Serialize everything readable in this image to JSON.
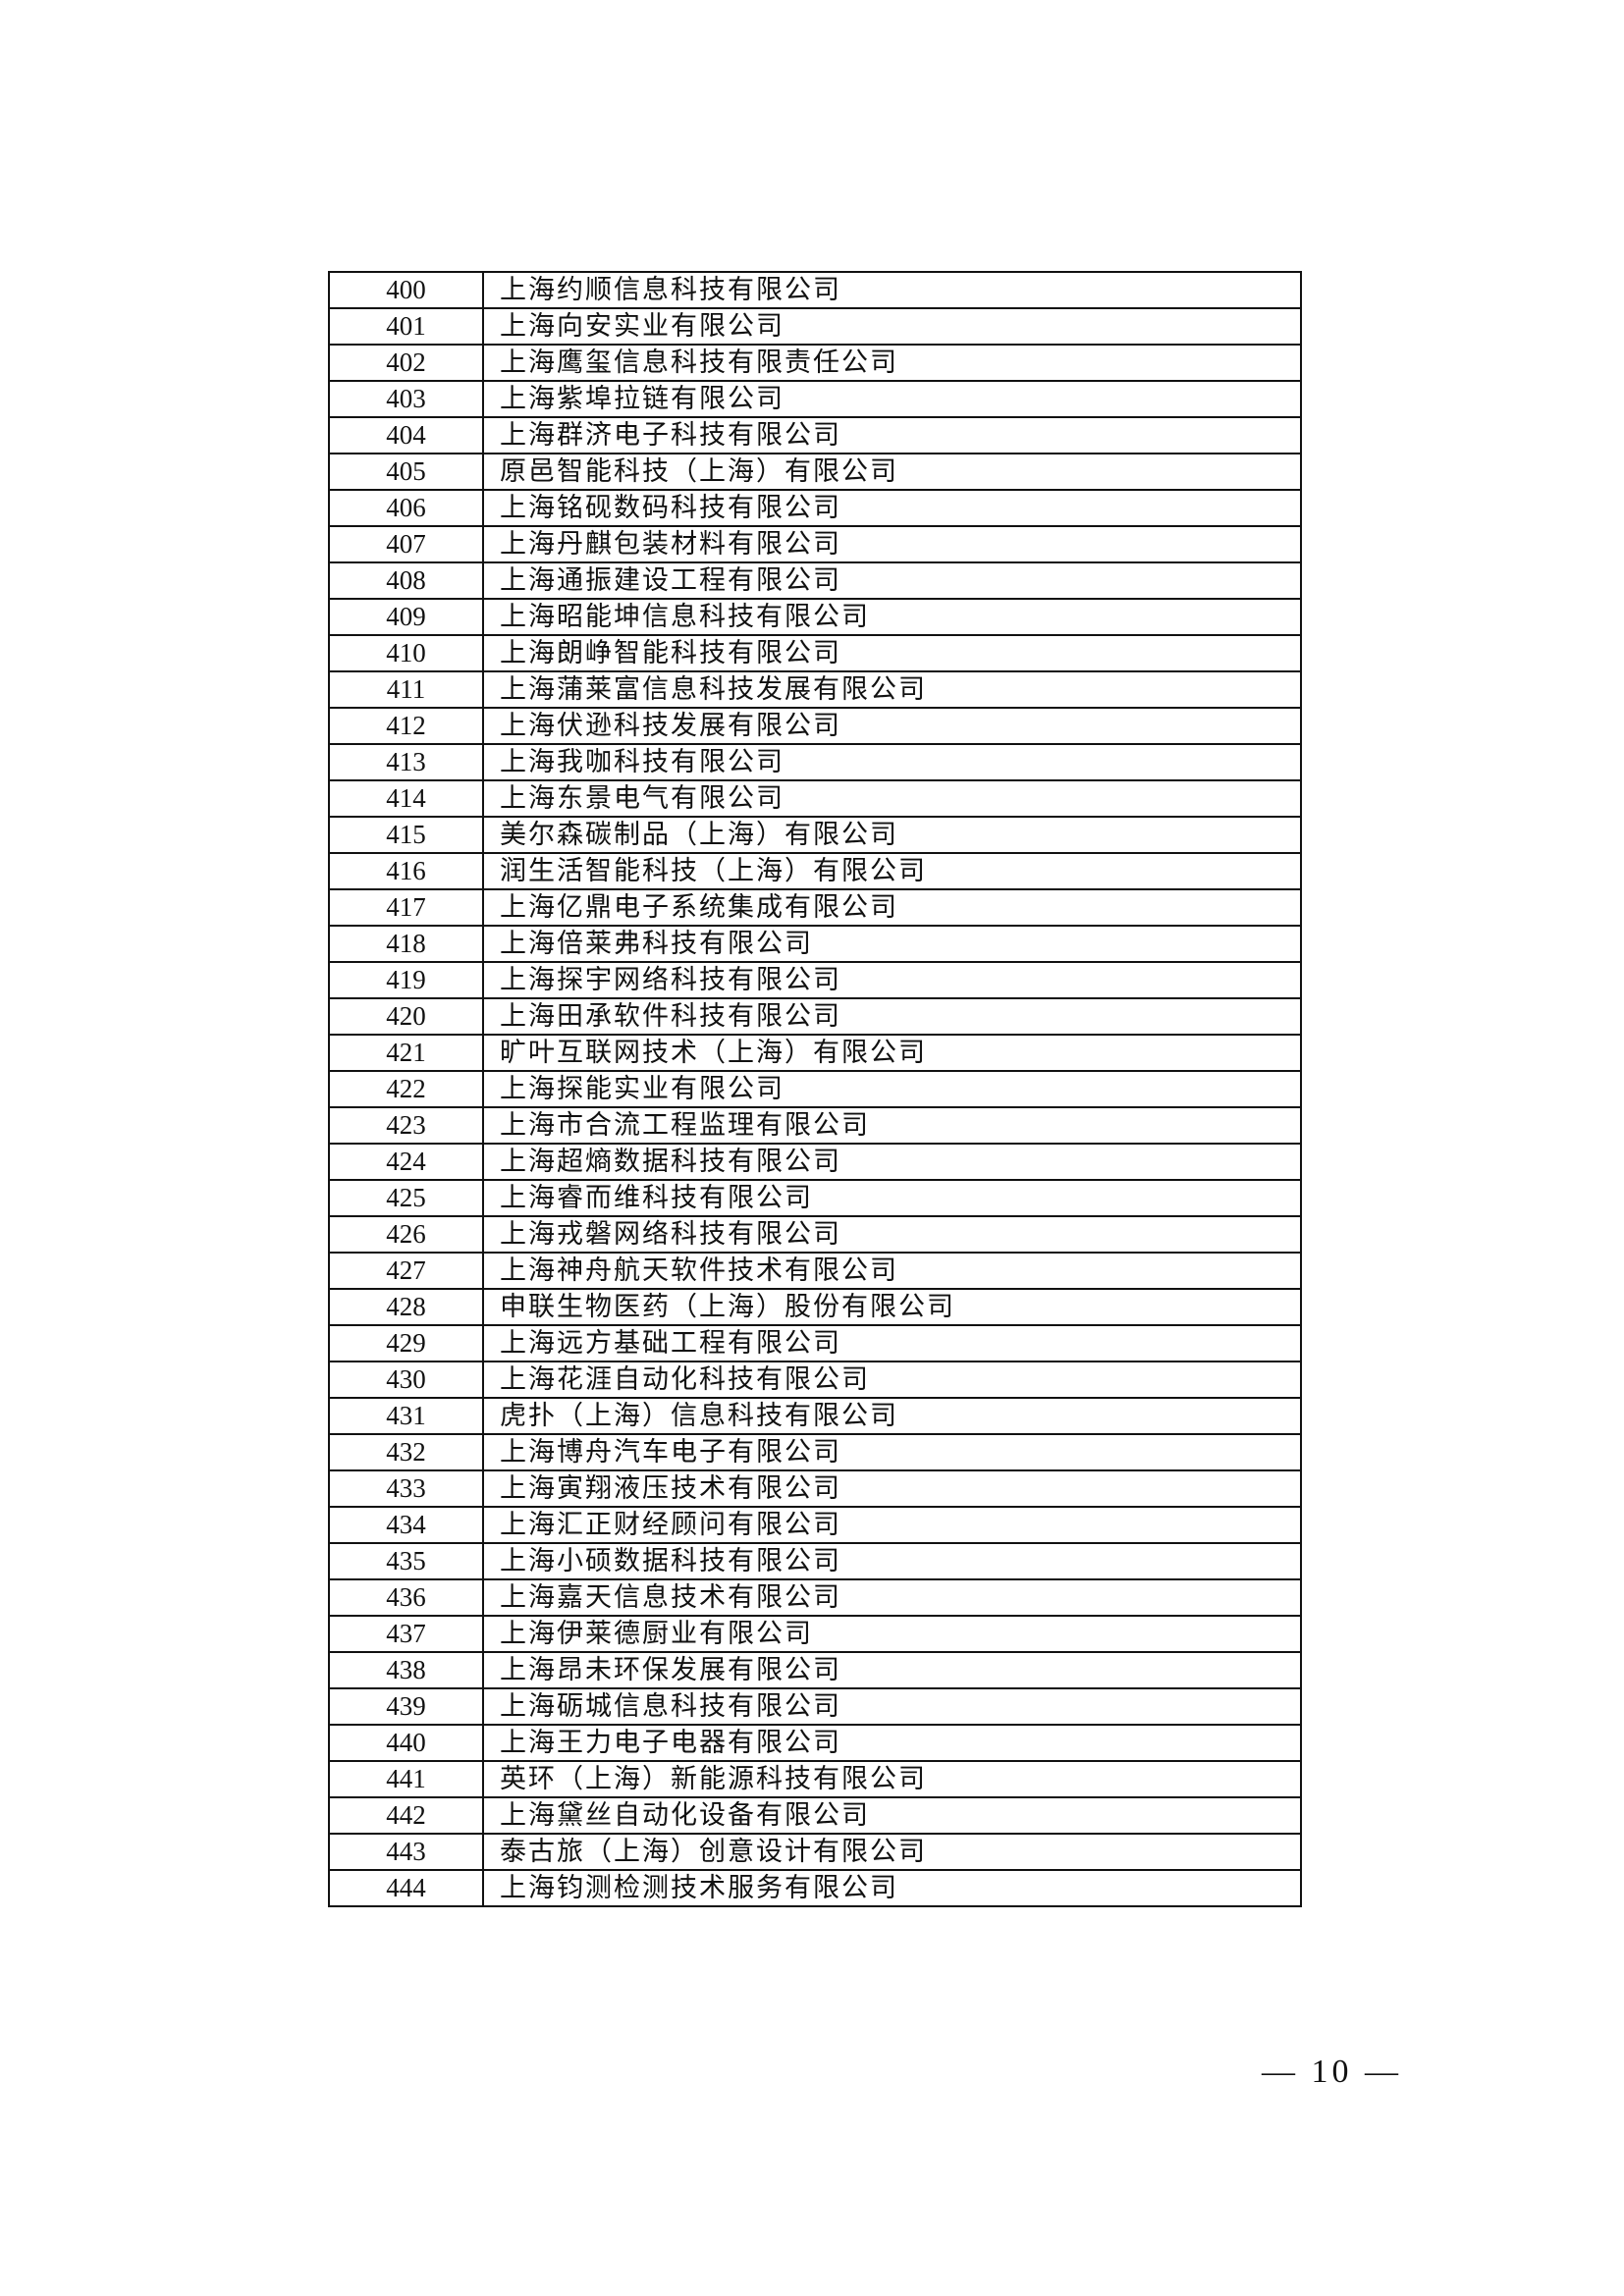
{
  "table": {
    "rows": [
      {
        "no": "400",
        "name": "上海约顺信息科技有限公司"
      },
      {
        "no": "401",
        "name": "上海向安实业有限公司"
      },
      {
        "no": "402",
        "name": "上海鹰玺信息科技有限责任公司"
      },
      {
        "no": "403",
        "name": "上海紫埠拉链有限公司"
      },
      {
        "no": "404",
        "name": "上海群济电子科技有限公司"
      },
      {
        "no": "405",
        "name": "原邑智能科技（上海）有限公司"
      },
      {
        "no": "406",
        "name": "上海铭砚数码科技有限公司"
      },
      {
        "no": "407",
        "name": "上海丹麒包装材料有限公司"
      },
      {
        "no": "408",
        "name": "上海通振建设工程有限公司"
      },
      {
        "no": "409",
        "name": "上海昭能坤信息科技有限公司"
      },
      {
        "no": "410",
        "name": "上海朗峥智能科技有限公司"
      },
      {
        "no": "411",
        "name": "上海蒲莱富信息科技发展有限公司"
      },
      {
        "no": "412",
        "name": "上海伏逊科技发展有限公司"
      },
      {
        "no": "413",
        "name": "上海我咖科技有限公司"
      },
      {
        "no": "414",
        "name": "上海东景电气有限公司"
      },
      {
        "no": "415",
        "name": "美尔森碳制品（上海）有限公司"
      },
      {
        "no": "416",
        "name": "润生活智能科技（上海）有限公司"
      },
      {
        "no": "417",
        "name": "上海亿鼎电子系统集成有限公司"
      },
      {
        "no": "418",
        "name": "上海倍莱弗科技有限公司"
      },
      {
        "no": "419",
        "name": "上海探宇网络科技有限公司"
      },
      {
        "no": "420",
        "name": "上海田承软件科技有限公司"
      },
      {
        "no": "421",
        "name": "旷叶互联网技术（上海）有限公司"
      },
      {
        "no": "422",
        "name": "上海探能实业有限公司"
      },
      {
        "no": "423",
        "name": "上海市合流工程监理有限公司"
      },
      {
        "no": "424",
        "name": "上海超熵数据科技有限公司"
      },
      {
        "no": "425",
        "name": "上海睿而维科技有限公司"
      },
      {
        "no": "426",
        "name": "上海戎磐网络科技有限公司"
      },
      {
        "no": "427",
        "name": "上海神舟航天软件技术有限公司"
      },
      {
        "no": "428",
        "name": "申联生物医药（上海）股份有限公司"
      },
      {
        "no": "429",
        "name": "上海远方基础工程有限公司"
      },
      {
        "no": "430",
        "name": "上海花涯自动化科技有限公司"
      },
      {
        "no": "431",
        "name": "虎扑（上海）信息科技有限公司"
      },
      {
        "no": "432",
        "name": "上海博舟汽车电子有限公司"
      },
      {
        "no": "433",
        "name": "上海寅翔液压技术有限公司"
      },
      {
        "no": "434",
        "name": "上海汇正财经顾问有限公司"
      },
      {
        "no": "435",
        "name": "上海小硕数据科技有限公司"
      },
      {
        "no": "436",
        "name": "上海嘉天信息技术有限公司"
      },
      {
        "no": "437",
        "name": "上海伊莱德厨业有限公司"
      },
      {
        "no": "438",
        "name": "上海昂未环保发展有限公司"
      },
      {
        "no": "439",
        "name": "上海砺城信息科技有限公司"
      },
      {
        "no": "440",
        "name": "上海王力电子电器有限公司"
      },
      {
        "no": "441",
        "name": "英环（上海）新能源科技有限公司"
      },
      {
        "no": "442",
        "name": "上海黛丝自动化设备有限公司"
      },
      {
        "no": "443",
        "name": "泰古旅（上海）创意设计有限公司"
      },
      {
        "no": "444",
        "name": "上海钧测检测技术服务有限公司"
      }
    ]
  },
  "footer": {
    "page_number": "— 10 —"
  }
}
